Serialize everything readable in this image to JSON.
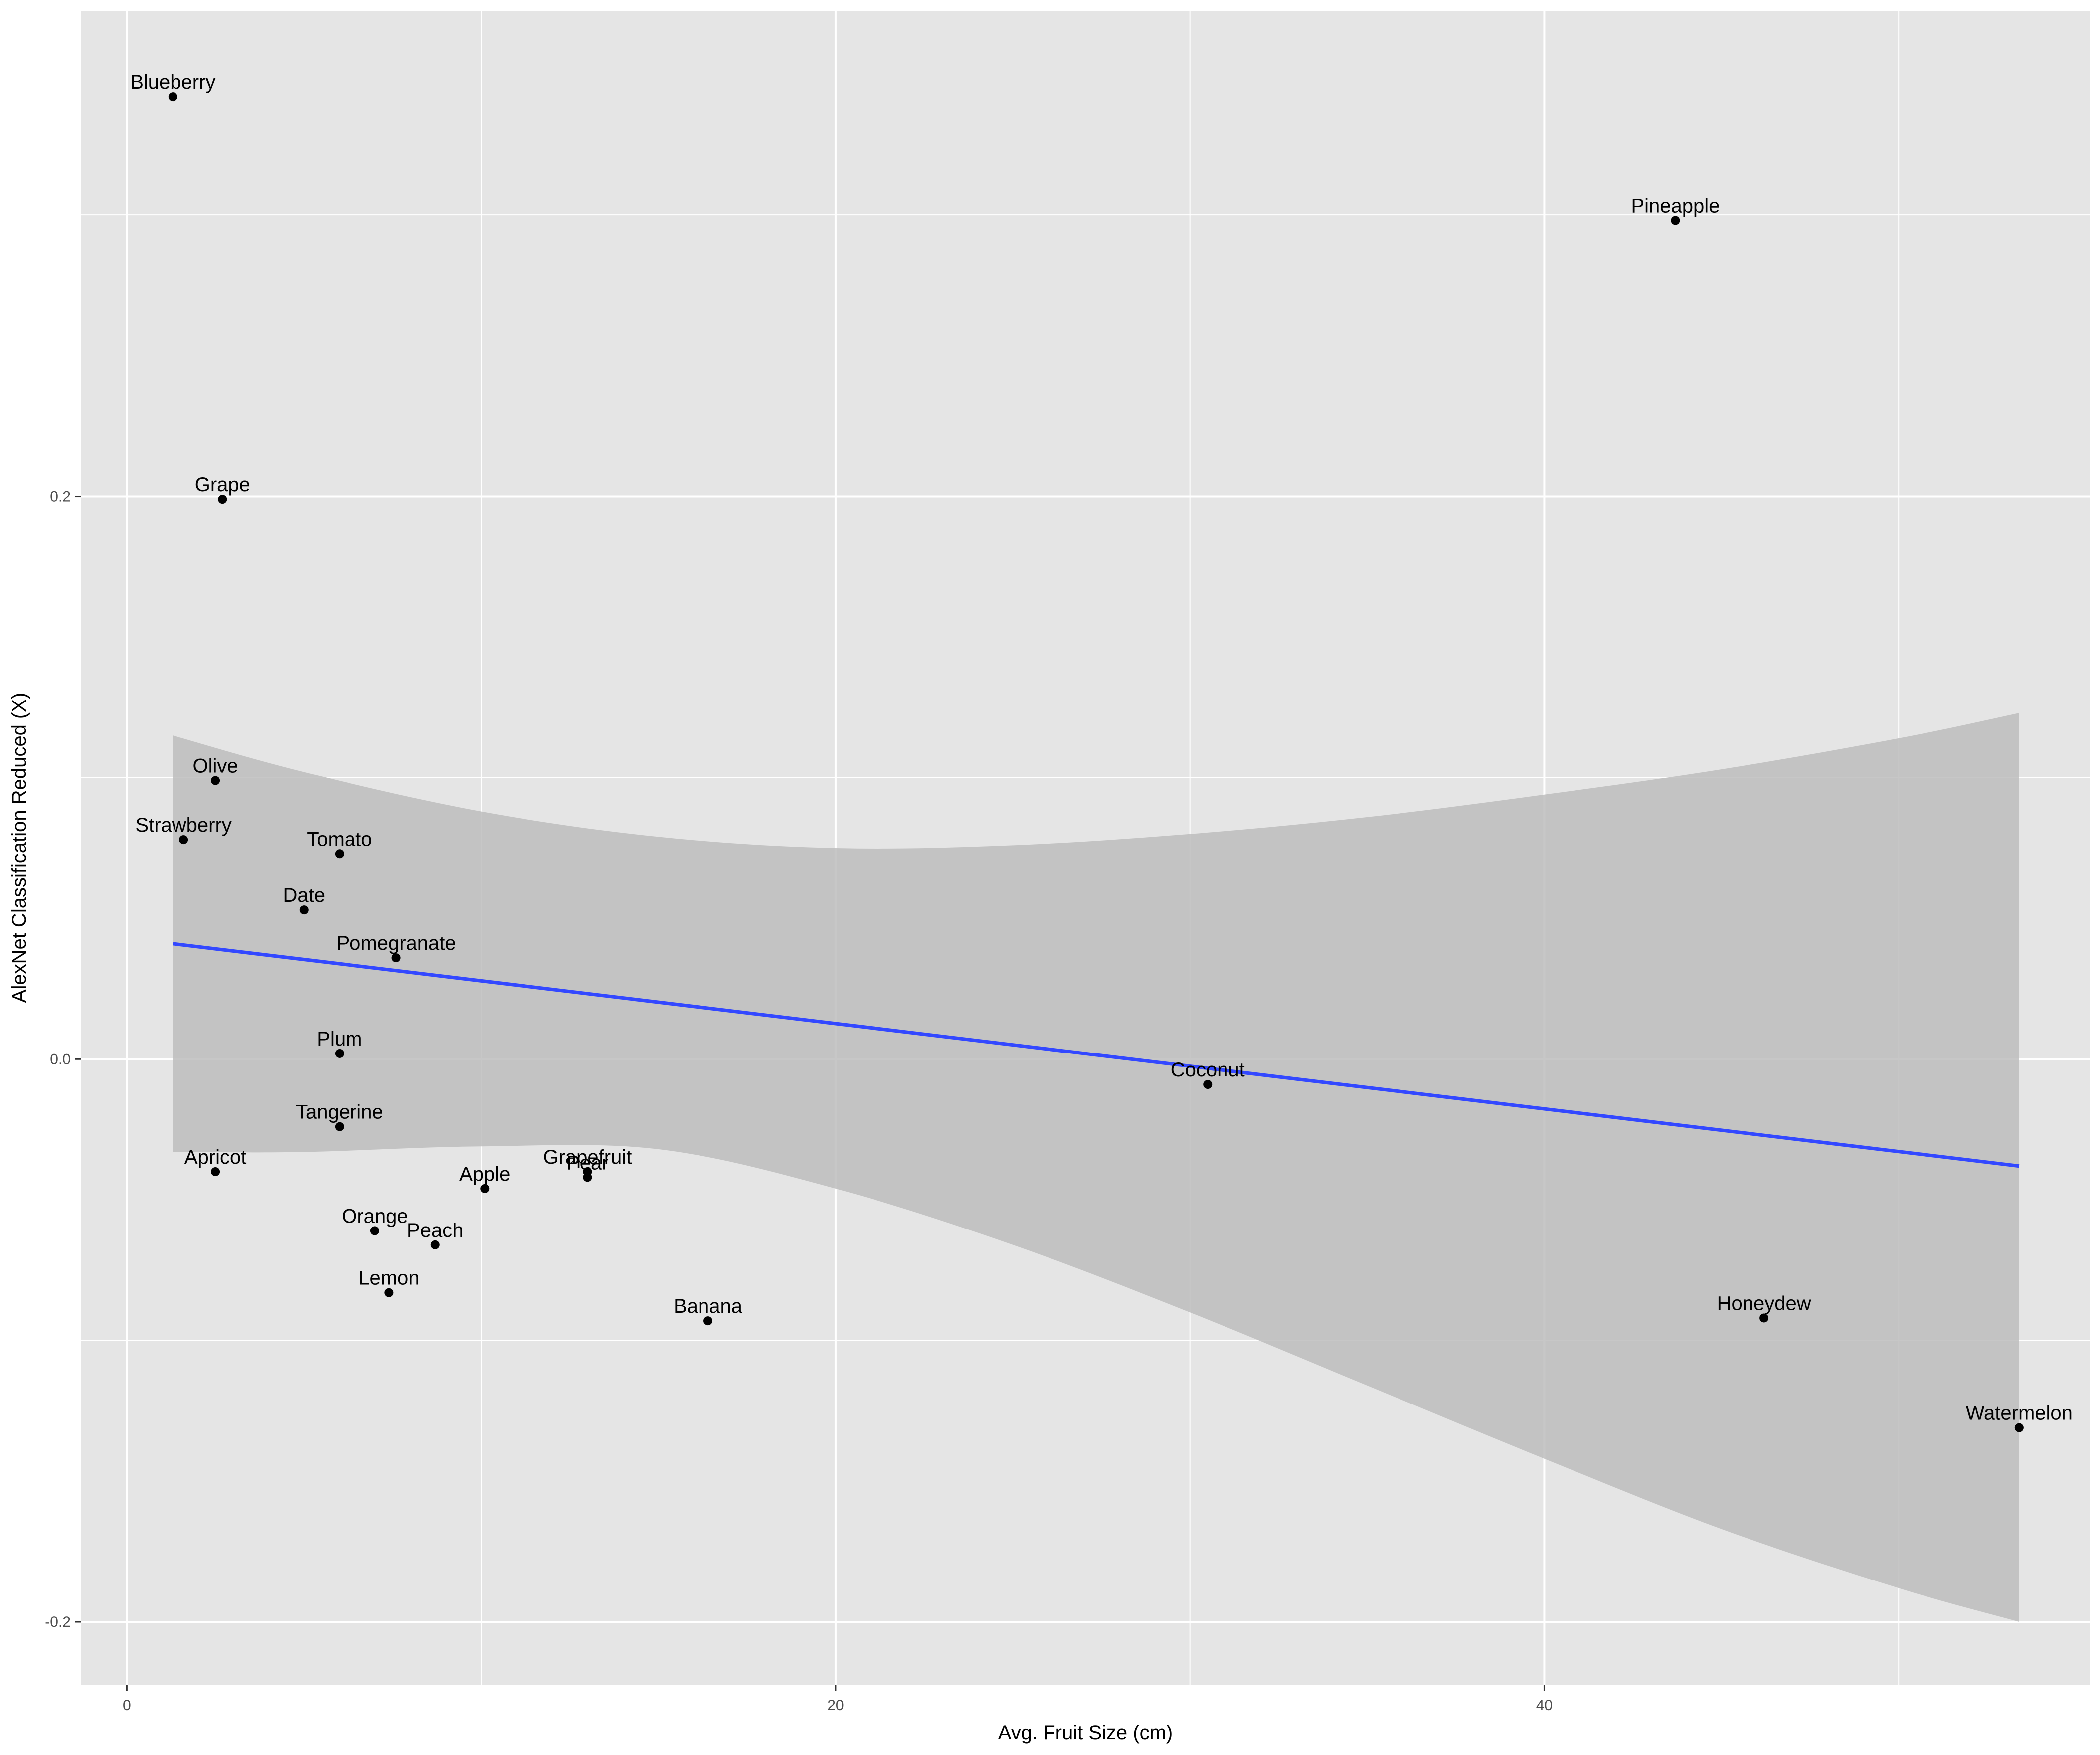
{
  "chart_data": {
    "type": "scatter",
    "title": "",
    "xlabel": "Avg. Fruit Size (cm)",
    "ylabel": "AlexNet Classification Reduced (X)",
    "xlim": [
      -1.3,
      55.4
    ],
    "ylim": [
      -0.2225,
      0.3725
    ],
    "x_ticks": [
      0,
      20,
      40
    ],
    "x_tick_labels": [
      "0",
      "20",
      "40"
    ],
    "y_ticks": [
      -0.2,
      0.0,
      0.2
    ],
    "y_tick_labels": [
      "-0.2",
      "0.0",
      "0.2"
    ],
    "grid": true,
    "legend": "none",
    "points": [
      {
        "label": "Blueberry",
        "x": 1.3,
        "y": 0.342
      },
      {
        "label": "Pineapple",
        "x": 43.7,
        "y": 0.298
      },
      {
        "label": "Grape",
        "x": 2.7,
        "y": 0.199
      },
      {
        "label": "Olive",
        "x": 2.5,
        "y": 0.099
      },
      {
        "label": "Strawberry",
        "x": 1.6,
        "y": 0.078
      },
      {
        "label": "Tomato",
        "x": 6.0,
        "y": 0.073
      },
      {
        "label": "Date",
        "x": 5.0,
        "y": 0.053
      },
      {
        "label": "Pomegranate",
        "x": 7.6,
        "y": 0.036
      },
      {
        "label": "Plum",
        "x": 6.0,
        "y": 0.002
      },
      {
        "label": "Coconut",
        "x": 30.5,
        "y": -0.009
      },
      {
        "label": "Tangerine",
        "x": 6.0,
        "y": -0.024
      },
      {
        "label": "Apricot",
        "x": 2.5,
        "y": -0.04
      },
      {
        "label": "Grapefruit",
        "x": 13.0,
        "y": -0.04
      },
      {
        "label": "Pear",
        "x": 13.0,
        "y": -0.042
      },
      {
        "label": "Apple",
        "x": 10.1,
        "y": -0.046
      },
      {
        "label": "Orange",
        "x": 7.0,
        "y": -0.061
      },
      {
        "label": "Peach",
        "x": 8.7,
        "y": -0.066
      },
      {
        "label": "Lemon",
        "x": 7.4,
        "y": -0.083
      },
      {
        "label": "Banana",
        "x": 16.4,
        "y": -0.093
      },
      {
        "label": "Honeydew",
        "x": 46.2,
        "y": -0.092
      },
      {
        "label": "Watermelon",
        "x": 53.4,
        "y": -0.131
      }
    ],
    "fit_line": {
      "method": "linear",
      "color": "#3348FF",
      "x": [
        1.3,
        53.4
      ],
      "y": [
        0.041,
        -0.038
      ]
    },
    "confidence_band": {
      "color": "#BDBDBD",
      "x": [
        1.3,
        5,
        10,
        15,
        20,
        25,
        30,
        35,
        40,
        45,
        50,
        53.4
      ],
      "upper": [
        0.115,
        0.102,
        0.088,
        0.079,
        0.075,
        0.076,
        0.08,
        0.086,
        0.094,
        0.103,
        0.114,
        0.123
      ],
      "lower": [
        -0.033,
        -0.033,
        -0.031,
        -0.032,
        -0.046,
        -0.066,
        -0.09,
        -0.116,
        -0.142,
        -0.167,
        -0.188,
        -0.2
      ]
    },
    "colors": {
      "panel_background": "#E5E5E5",
      "grid_major": "#FFFFFF",
      "point": "#000000"
    }
  }
}
